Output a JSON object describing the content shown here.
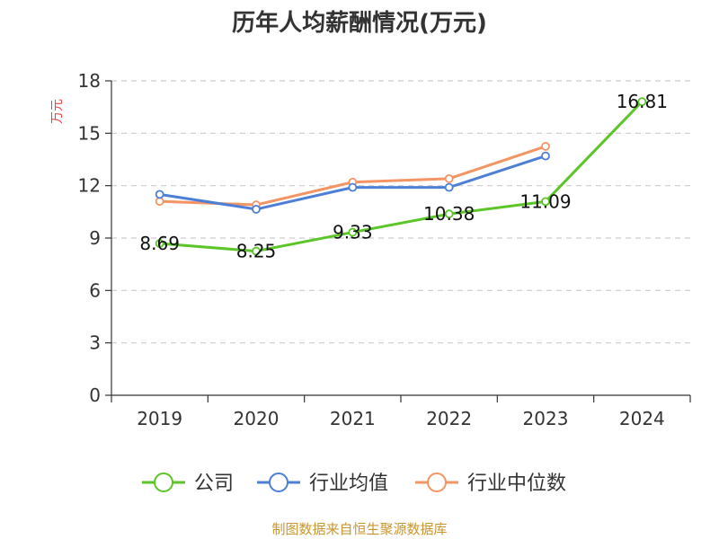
{
  "chart_data": {
    "type": "line",
    "title": "历年人均薪酬情况(万元)",
    "ylabel": "万元",
    "ylim": [
      0,
      18
    ],
    "yticks": [
      0,
      3,
      6,
      9,
      12,
      15,
      18
    ],
    "grid": true,
    "legend_position": "bottom",
    "categories": [
      "2019",
      "2020",
      "2021",
      "2022",
      "2023",
      "2024"
    ],
    "series": [
      {
        "name": "公司",
        "color": "#5cc527",
        "values": [
          8.69,
          8.25,
          9.33,
          10.38,
          11.09,
          16.81
        ],
        "labels": [
          "8.69",
          "8.25",
          "9.33",
          "10.38",
          "11.09",
          "16.81"
        ]
      },
      {
        "name": "行业均值",
        "color": "#4d7fd6",
        "values": [
          11.5,
          10.65,
          11.9,
          11.9,
          13.7,
          null
        ]
      },
      {
        "name": "行业中位数",
        "color": "#f59463",
        "values": [
          11.1,
          10.9,
          12.2,
          12.4,
          14.25,
          null
        ]
      }
    ],
    "source": "制图数据来自恒生聚源数据库",
    "colors": {
      "ylabel": "#e64545",
      "source": "#c9962e",
      "grid": "#cccccc",
      "axis": "#333333"
    }
  }
}
